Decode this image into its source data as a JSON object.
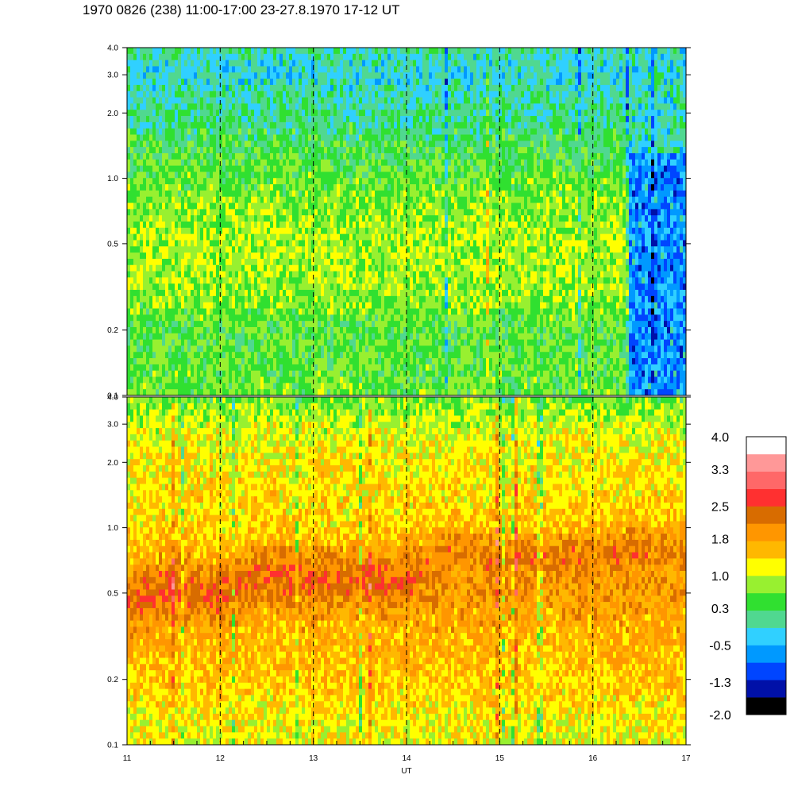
{
  "title": "1970 0826 (238) 11:00-17:00 23-27.8.1970  17-12 UT",
  "chart_data": {
    "type": "heatmap",
    "title": "1970 0826 (238) 11:00-17:00 23-27.8.1970  17-12 UT",
    "xlabel": "UT",
    "x_range": [
      11,
      17
    ],
    "x_ticks": [
      {
        "v": 11,
        "label": "11"
      },
      {
        "v": 12,
        "label": "12"
      },
      {
        "v": 13,
        "label": "13"
      },
      {
        "v": 14,
        "label": "14"
      },
      {
        "v": 15,
        "label": "15"
      },
      {
        "v": 16,
        "label": "16"
      },
      {
        "v": 17,
        "label": "17"
      }
    ],
    "dashed_gridlines_x": [
      12,
      13,
      14,
      15,
      16
    ],
    "y_scale": "log",
    "y_range": [
      0.1,
      4.0
    ],
    "y_ticks": [
      {
        "v": 0.1,
        "label": "0.1"
      },
      {
        "v": 0.2,
        "label": "0.2"
      },
      {
        "v": 0.5,
        "label": "0.5"
      },
      {
        "v": 1.0,
        "label": "1.0"
      },
      {
        "v": 2.0,
        "label": "2.0"
      },
      {
        "v": 3.0,
        "label": "3.0"
      },
      {
        "v": 4.0,
        "label": "4.0"
      }
    ],
    "colorbar": {
      "range": [
        -2.0,
        4.0
      ],
      "labels": [
        {
          "v": 4.0,
          "label": "4.0"
        },
        {
          "v": 3.3,
          "label": "3.3"
        },
        {
          "v": 2.5,
          "label": "2.5"
        },
        {
          "v": 1.8,
          "label": "1.8"
        },
        {
          "v": 1.0,
          "label": "1.0"
        },
        {
          "v": 0.3,
          "label": "0.3"
        },
        {
          "v": -0.5,
          "label": "-0.5"
        },
        {
          "v": -1.3,
          "label": "-1.3"
        },
        {
          "v": -2.0,
          "label": "-2.0"
        }
      ],
      "colors": [
        "#000000",
        "#0010a8",
        "#0045ff",
        "#0099ff",
        "#30d0ff",
        "#50d890",
        "#30e030",
        "#98f030",
        "#ffff00",
        "#ffb800",
        "#ff9600",
        "#d86c00",
        "#ff3030",
        "#ff6868",
        "#ff9898",
        "#ffffff"
      ]
    },
    "panels": [
      {
        "id": "upper",
        "profile": [
          {
            "y": 0.1,
            "v": 0.6
          },
          {
            "y": 0.2,
            "v": 0.5
          },
          {
            "y": 0.3,
            "v": 0.8
          },
          {
            "y": 0.5,
            "v": 0.9
          },
          {
            "y": 1.0,
            "v": 0.6
          },
          {
            "y": 2.0,
            "v": 0.1
          },
          {
            "y": 3.0,
            "v": -0.2
          },
          {
            "y": 4.0,
            "v": 0.0
          }
        ],
        "low_region": {
          "x_start": 16.38,
          "x_end": 17.0,
          "value": -0.7
        }
      },
      {
        "id": "lower",
        "profile": [
          {
            "y": 0.1,
            "v": 1.1
          },
          {
            "y": 0.2,
            "v": 1.5
          },
          {
            "y": 0.5,
            "v": 1.85
          },
          {
            "y": 1.0,
            "v": 1.4
          },
          {
            "y": 2.0,
            "v": 1.3
          },
          {
            "y": 3.0,
            "v": 1.0
          },
          {
            "y": 4.0,
            "v": 0.6
          }
        ],
        "ridge": [
          {
            "x": 11.0,
            "y": 0.45
          },
          {
            "x": 11.5,
            "y": 0.55
          },
          {
            "x": 12.0,
            "y": 0.5
          },
          {
            "x": 12.5,
            "y": 0.65
          },
          {
            "x": 13.0,
            "y": 0.6
          },
          {
            "x": 13.5,
            "y": 0.62
          },
          {
            "x": 14.0,
            "y": 0.6
          },
          {
            "x": 14.5,
            "y": 0.8
          },
          {
            "x": 15.0,
            "y": 0.75
          },
          {
            "x": 15.5,
            "y": 0.78
          },
          {
            "x": 16.0,
            "y": 0.75
          },
          {
            "x": 16.5,
            "y": 0.82
          },
          {
            "x": 17.0,
            "y": 0.85
          }
        ]
      }
    ]
  }
}
